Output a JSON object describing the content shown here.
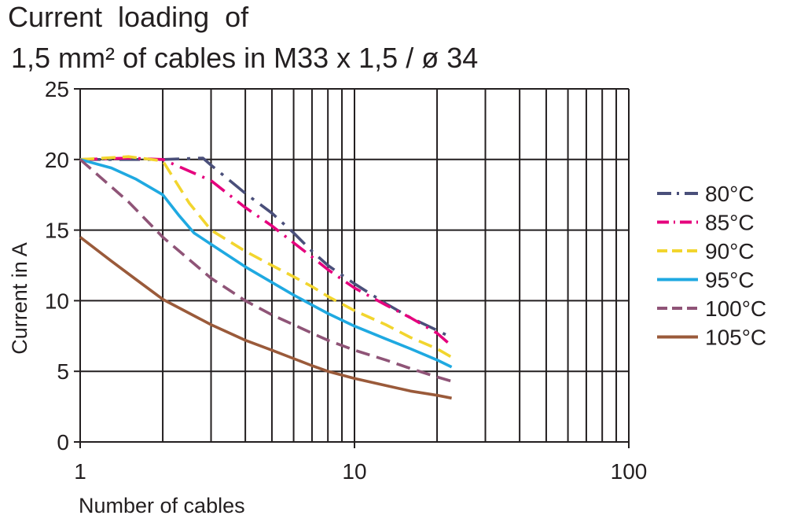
{
  "chart_data": {
    "type": "line",
    "title_line1": "Current  loading  of",
    "title_line2": "1,5 mm² of cables in M33 x 1,5 / ø 34",
    "xlabel": "Number  of  cables",
    "ylabel": "Current in A",
    "xscale": "log",
    "xlim": [
      1,
      100
    ],
    "ylim": [
      0,
      25
    ],
    "xticks": [
      "1",
      "10",
      "100"
    ],
    "yticks": [
      "0",
      "5",
      "10",
      "15",
      "20",
      "25"
    ],
    "grid": true,
    "legend_position": "right",
    "series": [
      {
        "name": "80°C",
        "color": "#4a4f7a",
        "dash": "26,10,4,10",
        "x": [
          1,
          1.5,
          2,
          2.8,
          3,
          4,
          5,
          6,
          7,
          8,
          10,
          13,
          16,
          20,
          22
        ],
        "y": [
          20,
          20,
          20,
          20.1,
          19.6,
          17.6,
          16.2,
          14.8,
          13.5,
          12.5,
          11.2,
          9.8,
          8.8,
          7.9,
          7.5
        ]
      },
      {
        "name": "85°C",
        "color": "#e5007d",
        "dash": "22,9,3,9",
        "x": [
          1,
          1.5,
          2,
          3,
          4,
          5,
          6,
          7,
          8,
          10,
          13,
          16,
          20,
          22
        ],
        "y": [
          20,
          20.1,
          20,
          18.5,
          16.6,
          15.3,
          14.1,
          13.1,
          12.2,
          10.9,
          9.7,
          8.8,
          7.7,
          7.0
        ]
      },
      {
        "name": "90°C",
        "color": "#f2d52e",
        "dash": "18,9",
        "x": [
          1,
          1.5,
          2,
          2.5,
          3,
          4,
          5,
          6,
          7,
          8,
          10,
          13,
          16,
          20,
          22.6
        ],
        "y": [
          20,
          20.2,
          19.9,
          16.9,
          15.0,
          13.5,
          12.5,
          11.7,
          11.0,
          10.3,
          9.3,
          8.3,
          7.4,
          6.6,
          6.0
        ]
      },
      {
        "name": "95°C",
        "color": "#1fa9e1",
        "dash": "",
        "x": [
          1,
          1.3,
          1.6,
          2,
          2.3,
          2.6,
          3,
          4,
          5,
          6,
          7,
          8,
          10,
          13,
          16,
          20,
          22.6
        ],
        "y": [
          20,
          19.4,
          18.6,
          17.5,
          16.0,
          14.8,
          14.0,
          12.4,
          11.3,
          10.4,
          9.7,
          9.1,
          8.2,
          7.3,
          6.6,
          5.8,
          5.3
        ]
      },
      {
        "name": "100°C",
        "color": "#8f5477",
        "dash": "18,9",
        "x": [
          1,
          1.5,
          2,
          3,
          4,
          5,
          6,
          7,
          8,
          10,
          13,
          16,
          20,
          22.6
        ],
        "y": [
          20,
          17,
          14.5,
          11.6,
          10.0,
          9.0,
          8.3,
          7.7,
          7.2,
          6.5,
          5.8,
          5.2,
          4.6,
          4.3
        ]
      },
      {
        "name": "105°C",
        "color": "#9a5a3a",
        "dash": "",
        "x": [
          1,
          1.3,
          1.6,
          2,
          3,
          4,
          5,
          6,
          7,
          8,
          10,
          13,
          16,
          20,
          22.6
        ],
        "y": [
          14.5,
          12.8,
          11.5,
          10.1,
          8.3,
          7.2,
          6.5,
          5.9,
          5.4,
          5.0,
          4.5,
          4.0,
          3.6,
          3.3,
          3.1
        ]
      }
    ]
  }
}
